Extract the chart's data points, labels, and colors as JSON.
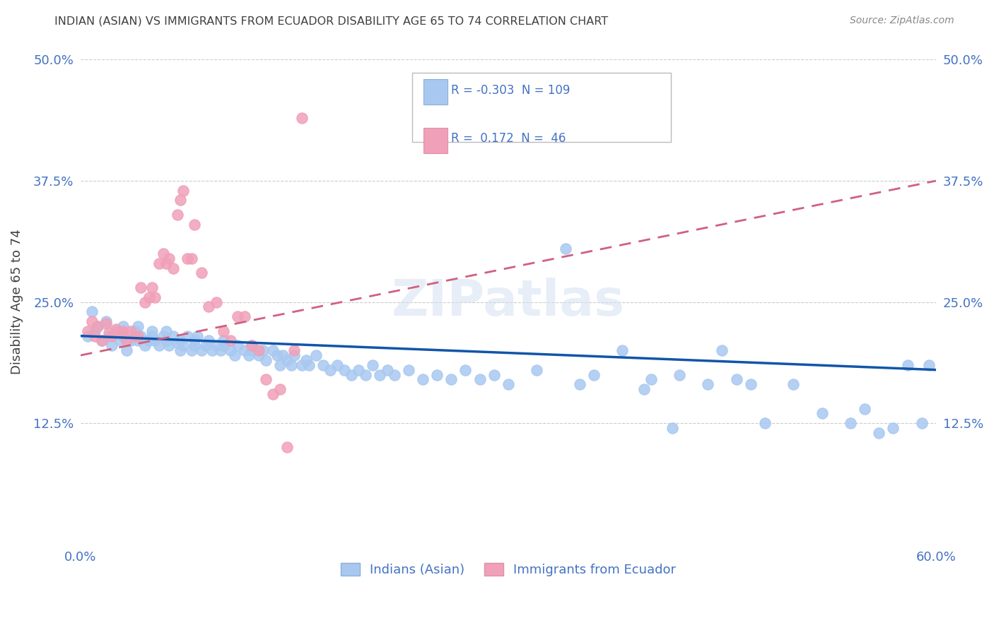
{
  "title": "INDIAN (ASIAN) VS IMMIGRANTS FROM ECUADOR DISABILITY AGE 65 TO 74 CORRELATION CHART",
  "source": "Source: ZipAtlas.com",
  "ylabel_label": "Disability Age 65 to 74",
  "x_min": 0.0,
  "x_max": 0.6,
  "y_min": 0.0,
  "y_max": 0.5,
  "legend_label_blue": "Indians (Asian)",
  "legend_label_pink": "Immigrants from Ecuador",
  "R_blue": -0.303,
  "N_blue": 109,
  "R_pink": 0.172,
  "N_pink": 46,
  "blue_color": "#a8c8f0",
  "pink_color": "#f0a0b8",
  "blue_line_color": "#1155aa",
  "pink_line_color": "#d06080",
  "text_color": "#4472c4",
  "title_color": "#404040",
  "grid_color": "#cccccc",
  "background_color": "#ffffff",
  "blue_x": [
    0.005,
    0.008,
    0.01,
    0.012,
    0.015,
    0.018,
    0.02,
    0.022,
    0.025,
    0.028,
    0.03,
    0.03,
    0.032,
    0.035,
    0.038,
    0.04,
    0.04,
    0.042,
    0.045,
    0.048,
    0.05,
    0.05,
    0.052,
    0.055,
    0.058,
    0.06,
    0.06,
    0.062,
    0.065,
    0.068,
    0.07,
    0.07,
    0.072,
    0.075,
    0.078,
    0.08,
    0.08,
    0.082,
    0.085,
    0.088,
    0.09,
    0.092,
    0.095,
    0.098,
    0.1,
    0.1,
    0.105,
    0.108,
    0.11,
    0.115,
    0.118,
    0.12,
    0.12,
    0.125,
    0.128,
    0.13,
    0.135,
    0.138,
    0.14,
    0.142,
    0.145,
    0.148,
    0.15,
    0.155,
    0.158,
    0.16,
    0.165,
    0.17,
    0.175,
    0.18,
    0.185,
    0.19,
    0.195,
    0.2,
    0.205,
    0.21,
    0.215,
    0.22,
    0.23,
    0.24,
    0.25,
    0.26,
    0.27,
    0.28,
    0.29,
    0.3,
    0.32,
    0.34,
    0.35,
    0.36,
    0.38,
    0.4,
    0.42,
    0.44,
    0.45,
    0.46,
    0.47,
    0.48,
    0.5,
    0.52,
    0.54,
    0.55,
    0.56,
    0.57,
    0.58,
    0.59,
    0.595,
    0.395,
    0.415
  ],
  "blue_y": [
    0.215,
    0.24,
    0.22,
    0.225,
    0.21,
    0.23,
    0.215,
    0.205,
    0.22,
    0.21,
    0.225,
    0.215,
    0.2,
    0.21,
    0.22,
    0.225,
    0.21,
    0.215,
    0.205,
    0.21,
    0.215,
    0.22,
    0.21,
    0.205,
    0.215,
    0.21,
    0.22,
    0.205,
    0.215,
    0.208,
    0.2,
    0.21,
    0.205,
    0.215,
    0.2,
    0.21,
    0.205,
    0.215,
    0.2,
    0.205,
    0.21,
    0.2,
    0.205,
    0.2,
    0.21,
    0.205,
    0.2,
    0.195,
    0.205,
    0.2,
    0.195,
    0.2,
    0.205,
    0.195,
    0.2,
    0.19,
    0.2,
    0.195,
    0.185,
    0.195,
    0.19,
    0.185,
    0.195,
    0.185,
    0.19,
    0.185,
    0.195,
    0.185,
    0.18,
    0.185,
    0.18,
    0.175,
    0.18,
    0.175,
    0.185,
    0.175,
    0.18,
    0.175,
    0.18,
    0.17,
    0.175,
    0.17,
    0.18,
    0.17,
    0.175,
    0.165,
    0.18,
    0.305,
    0.165,
    0.175,
    0.2,
    0.17,
    0.175,
    0.165,
    0.2,
    0.17,
    0.165,
    0.125,
    0.165,
    0.135,
    0.125,
    0.14,
    0.115,
    0.12,
    0.185,
    0.125,
    0.185,
    0.16,
    0.12
  ],
  "pink_x": [
    0.005,
    0.008,
    0.01,
    0.012,
    0.015,
    0.018,
    0.02,
    0.022,
    0.025,
    0.028,
    0.03,
    0.032,
    0.035,
    0.038,
    0.04,
    0.042,
    0.045,
    0.048,
    0.05,
    0.052,
    0.055,
    0.058,
    0.06,
    0.062,
    0.065,
    0.068,
    0.07,
    0.072,
    0.075,
    0.078,
    0.08,
    0.085,
    0.09,
    0.095,
    0.1,
    0.105,
    0.11,
    0.115,
    0.12,
    0.125,
    0.13,
    0.135,
    0.14,
    0.145,
    0.15,
    0.155
  ],
  "pink_y": [
    0.22,
    0.23,
    0.215,
    0.225,
    0.21,
    0.228,
    0.218,
    0.215,
    0.222,
    0.218,
    0.22,
    0.21,
    0.22,
    0.215,
    0.215,
    0.265,
    0.25,
    0.255,
    0.265,
    0.255,
    0.29,
    0.3,
    0.29,
    0.295,
    0.285,
    0.34,
    0.355,
    0.365,
    0.295,
    0.295,
    0.33,
    0.28,
    0.245,
    0.25,
    0.22,
    0.21,
    0.235,
    0.235,
    0.205,
    0.2,
    0.17,
    0.155,
    0.16,
    0.1,
    0.2,
    0.44
  ],
  "blue_line_x0": 0.0,
  "blue_line_x1": 0.6,
  "blue_line_y0": 0.215,
  "blue_line_y1": 0.18,
  "pink_line_x0": 0.0,
  "pink_line_x1": 0.6,
  "pink_line_y0": 0.195,
  "pink_line_y1": 0.375
}
